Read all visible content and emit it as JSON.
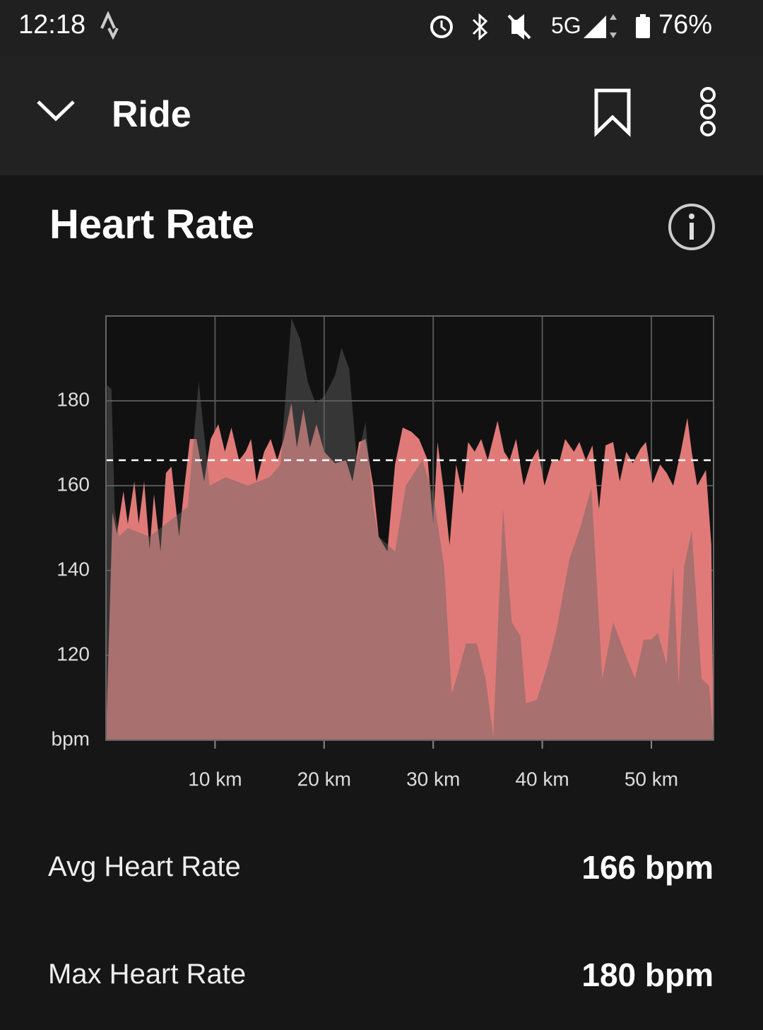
{
  "status_bar": {
    "time": "12:18",
    "network": "5G",
    "battery": "76%"
  },
  "app_bar": {
    "title": "Ride"
  },
  "section": {
    "title": "Heart Rate"
  },
  "chart_data": {
    "type": "area",
    "xlim": [
      0,
      55.7
    ],
    "xticks": [
      {
        "value": 10,
        "label": "10 km"
      },
      {
        "value": 20,
        "label": "20 km"
      },
      {
        "value": 30,
        "label": "30 km"
      },
      {
        "value": 40,
        "label": "40 km"
      },
      {
        "value": 50,
        "label": "50 km"
      }
    ],
    "ylim": [
      100,
      200
    ],
    "yticks": [
      {
        "value": 100,
        "label": "bpm"
      },
      120,
      140,
      160,
      180
    ],
    "grid": true,
    "reference_line": 166,
    "series": [
      {
        "color": "#e07a78",
        "x": [
          0,
          0.6,
          1.0,
          1.6,
          2.0,
          2.6,
          3.0,
          3.5,
          4.0,
          4.4,
          5.0,
          5.5,
          6.0,
          6.7,
          7.2,
          7.7,
          8.3,
          9.0,
          9.6,
          10.3,
          10.9,
          11.5,
          12.2,
          12.8,
          13.3,
          13.8,
          14.5,
          15.1,
          15.7,
          16.3,
          17.0,
          17.5,
          18.1,
          18.7,
          19.3,
          20.0,
          21.0,
          22.0,
          22.6,
          23.2,
          23.8,
          24.5,
          25.0,
          25.8,
          26.5,
          27.2,
          28.0,
          28.7,
          29.5,
          30.0,
          30.4,
          31.0,
          31.5,
          32.1,
          32.7,
          33.2,
          33.8,
          34.4,
          35.0,
          35.9,
          36.5,
          37.0,
          37.6,
          38.3,
          39.0,
          39.6,
          40.2,
          40.9,
          41.6,
          42.1,
          42.9,
          43.4,
          44.0,
          44.6,
          45.2,
          45.8,
          46.5,
          47.1,
          47.7,
          48.3,
          49.0,
          49.5,
          50.1,
          50.8,
          51.4,
          52.0,
          52.7,
          53.3,
          53.7,
          54.2,
          55.0,
          55.5,
          55.7
        ],
        "values": [
          100,
          153.7,
          148.7,
          158.7,
          151,
          161,
          151,
          161,
          145,
          158,
          144.5,
          163,
          164.5,
          148,
          160,
          171,
          171,
          161,
          171,
          174.5,
          168,
          173.7,
          166,
          168,
          171,
          161,
          168,
          171,
          166,
          171,
          179.5,
          169,
          178,
          169,
          174.5,
          168,
          165.3,
          166,
          161,
          170.3,
          171,
          160,
          148,
          144.5,
          165,
          173.7,
          172.7,
          171,
          166,
          151,
          170.3,
          158,
          146,
          165,
          158,
          170.3,
          168,
          171,
          166,
          175.3,
          168,
          166,
          171,
          160,
          166,
          168.7,
          160,
          166,
          166,
          171,
          168,
          170.3,
          166,
          169.5,
          154.5,
          169.5,
          170.3,
          161,
          168,
          165.3,
          168.7,
          170.3,
          160.5,
          165,
          163,
          160,
          168,
          176,
          168,
          160,
          163.7,
          146,
          100
        ]
      },
      {
        "color": "#646464",
        "x": [
          0,
          0.1,
          0.5,
          0.8,
          1.2,
          2,
          4,
          6,
          7.5,
          8.5,
          9.5,
          11,
          13,
          15,
          16,
          17.0,
          17.8,
          18.5,
          19.2,
          20.0,
          21.0,
          21.6,
          22.3,
          23.0,
          23.8,
          24.5,
          25.0,
          26.5,
          27.5,
          29.0,
          30.0,
          31.0,
          31.7,
          32.3,
          33.0,
          34.0,
          34.8,
          35.5,
          36.4,
          37.2,
          38.0,
          38.5,
          39.5,
          40.5,
          41.3,
          42.5,
          43.5,
          44.5,
          45.5,
          46.5,
          47.5,
          48.5,
          49.3,
          50.0,
          50.6,
          51.4,
          52.0,
          52.5,
          53.0,
          53.7,
          54.6,
          55.3,
          55.7
        ],
        "values": [
          100,
          183.7,
          182.8,
          154.5,
          148,
          150,
          148,
          152,
          155,
          184.5,
          160,
          162,
          160,
          162,
          165,
          199.5,
          194.5,
          184.5,
          179.5,
          181,
          186,
          192.5,
          187.5,
          166,
          175,
          155,
          148,
          144.5,
          160,
          166,
          158,
          141,
          111,
          116,
          122.8,
          122.8,
          114.5,
          101,
          154.5,
          127.8,
          124.5,
          108.7,
          109.5,
          117.8,
          126,
          142.8,
          150.3,
          159.5,
          114.5,
          127.8,
          121,
          114.5,
          123.7,
          123.7,
          125.3,
          117.8,
          141.2,
          112.8,
          141,
          149.5,
          114.5,
          112.8,
          100
        ]
      }
    ]
  },
  "stats": [
    {
      "label": "Avg Heart Rate",
      "value": "166 bpm"
    },
    {
      "label": "Max Heart Rate",
      "value": "180 bpm"
    }
  ]
}
